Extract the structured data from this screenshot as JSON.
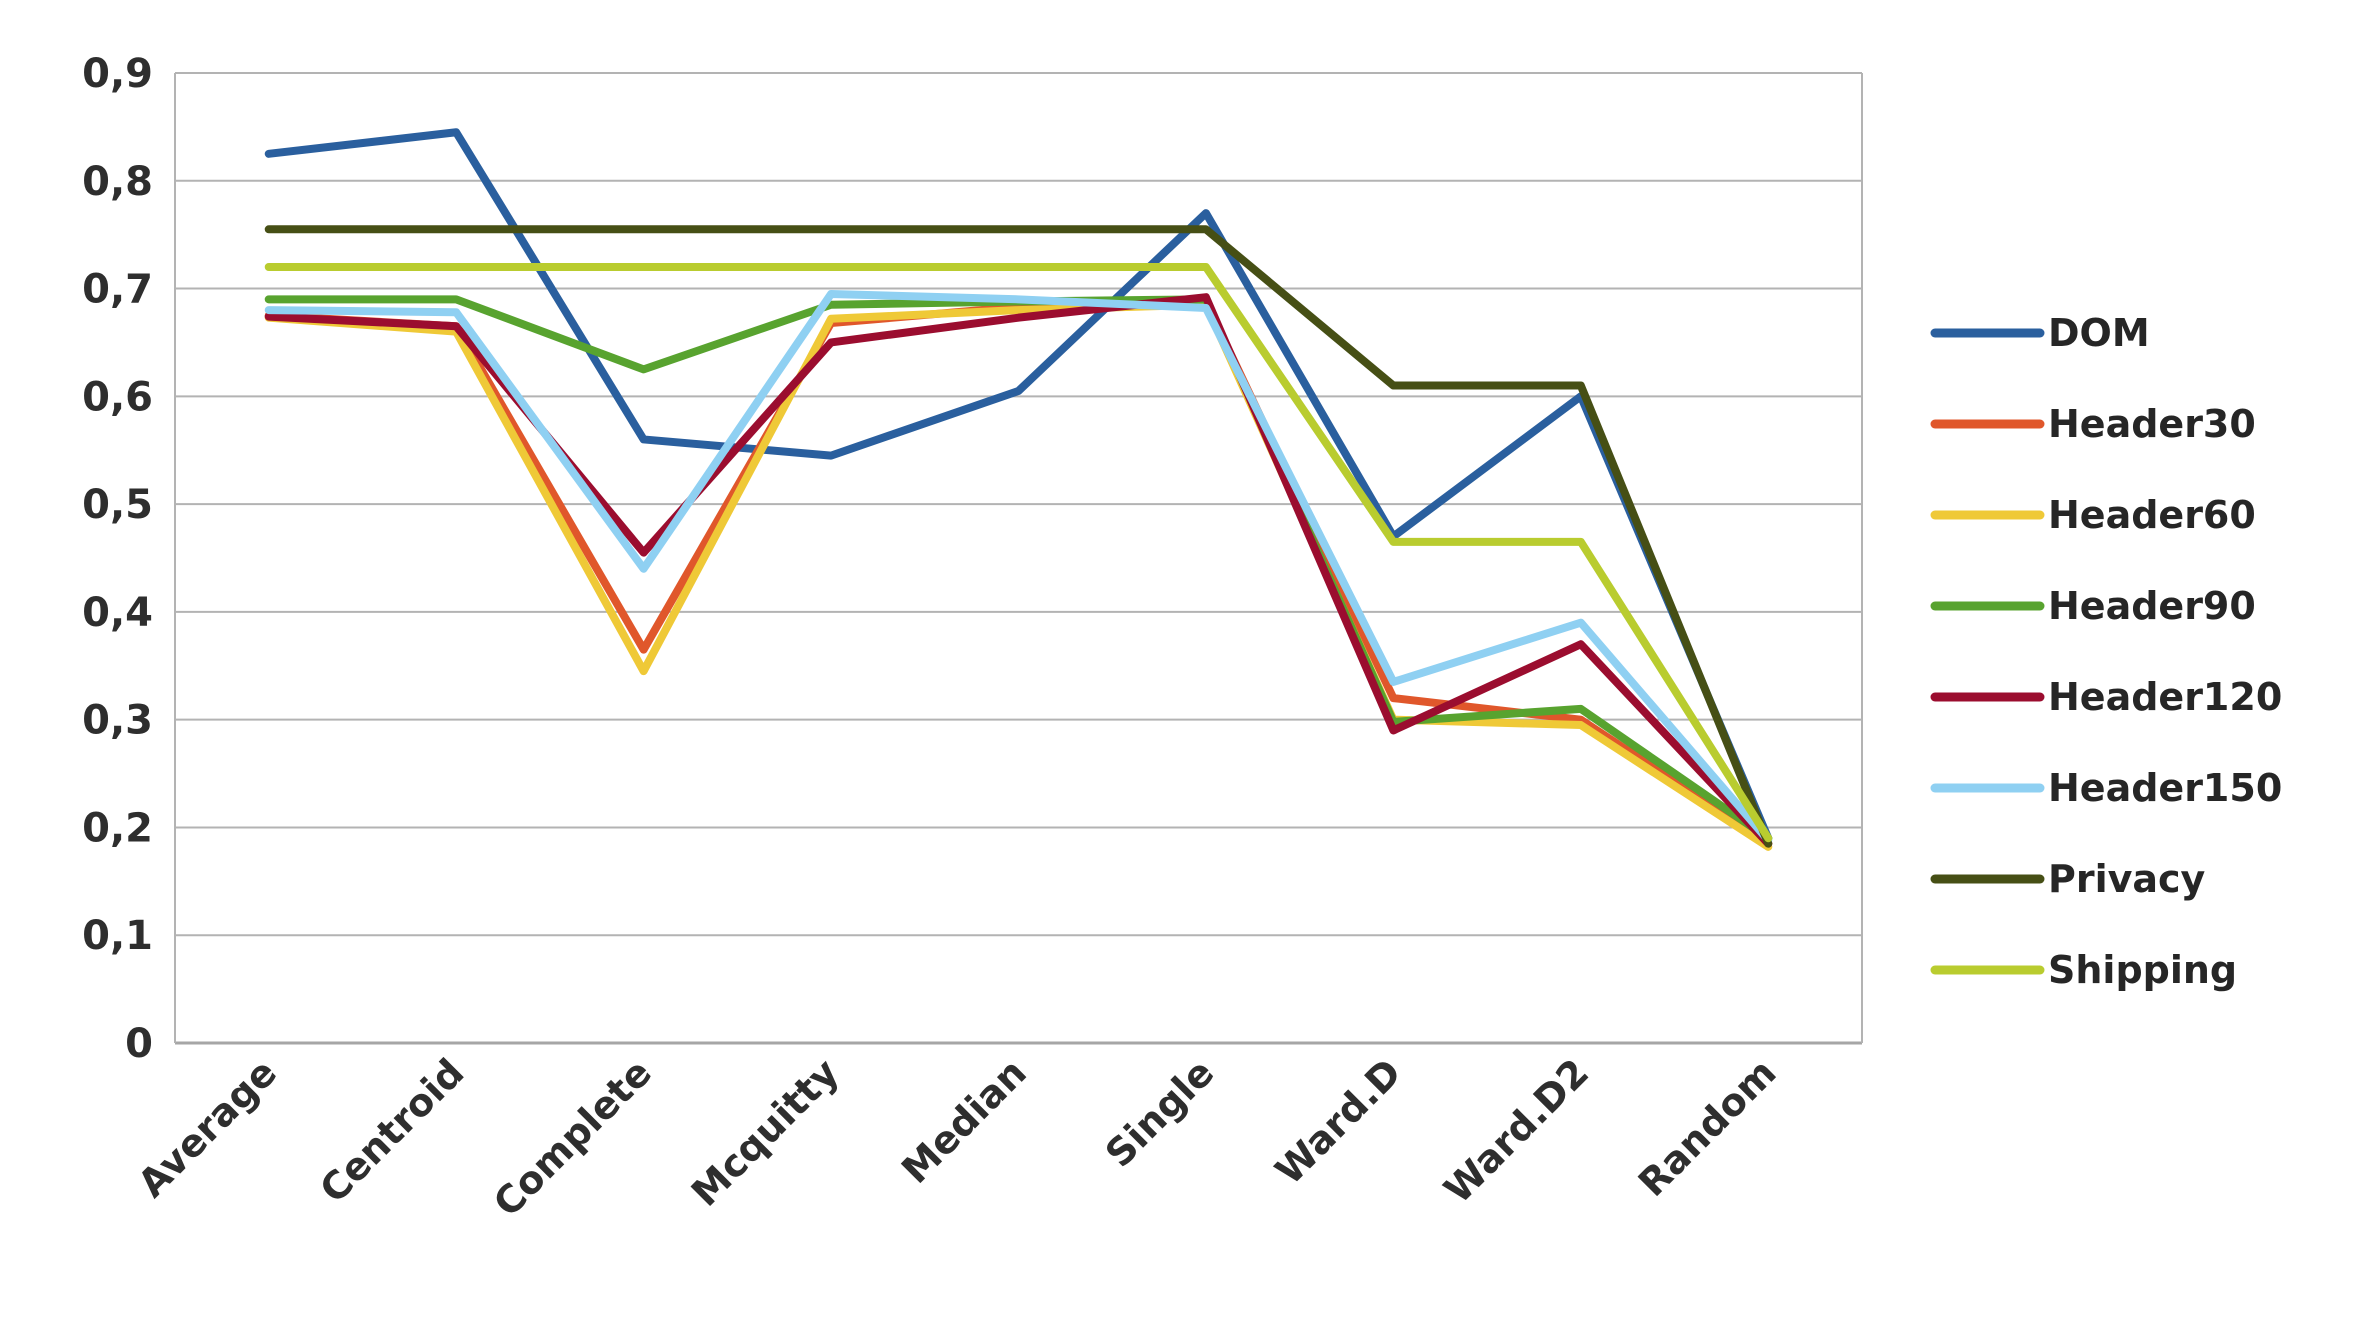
{
  "chart_data": {
    "type": "line",
    "title": "",
    "xlabel": "",
    "ylabel": "",
    "decimal_separator": ",",
    "grid": true,
    "legend_position": "right",
    "ylim": [
      0,
      0.9
    ],
    "yticks": {
      "values": [
        0,
        0.1,
        0.2,
        0.3,
        0.4,
        0.5,
        0.6,
        0.7,
        0.8,
        0.9
      ],
      "labels": [
        "0",
        "0,1",
        "0,2",
        "0,3",
        "0,4",
        "0,5",
        "0,6",
        "0,7",
        "0,8",
        "0,9"
      ]
    },
    "categories": [
      "Average",
      "Centroid",
      "Complete",
      "Mcquitty",
      "Median",
      "Single",
      "Ward.D",
      "Ward.D2",
      "Random"
    ],
    "series": [
      {
        "name": "DOM",
        "color": "#2A5F9E",
        "values": [
          0.825,
          0.845,
          0.56,
          0.545,
          0.605,
          0.77,
          0.47,
          0.6,
          0.19
        ]
      },
      {
        "name": "Header30",
        "color": "#E0572B",
        "values": [
          0.675,
          0.665,
          0.365,
          0.668,
          0.683,
          0.688,
          0.32,
          0.3,
          0.185
        ]
      },
      {
        "name": "Header60",
        "color": "#EFC937",
        "values": [
          0.673,
          0.66,
          0.345,
          0.672,
          0.68,
          0.685,
          0.3,
          0.295,
          0.182
        ]
      },
      {
        "name": "Header90",
        "color": "#58A32F",
        "values": [
          0.69,
          0.69,
          0.625,
          0.685,
          0.688,
          0.69,
          0.298,
          0.31,
          0.19
        ]
      },
      {
        "name": "Header120",
        "color": "#9B0D2F",
        "values": [
          0.674,
          0.665,
          0.455,
          0.65,
          0.673,
          0.692,
          0.29,
          0.37,
          0.185
        ]
      },
      {
        "name": "Header150",
        "color": "#8FD0F2",
        "values": [
          0.68,
          0.678,
          0.44,
          0.695,
          0.69,
          0.682,
          0.335,
          0.39,
          0.188
        ]
      },
      {
        "name": "Privacy",
        "color": "#464F15",
        "values": [
          0.755,
          0.755,
          0.755,
          0.755,
          0.755,
          0.755,
          0.61,
          0.61,
          0.185
        ]
      },
      {
        "name": "Shipping",
        "color": "#B9CC2F",
        "values": [
          0.72,
          0.72,
          0.72,
          0.72,
          0.72,
          0.72,
          0.465,
          0.465,
          0.19
        ]
      }
    ]
  },
  "colors": {
    "gridline": "#b3b3b3",
    "axis_line": "#a6a6a6",
    "tick_text": "#2e2e2e",
    "background": "#ffffff"
  }
}
